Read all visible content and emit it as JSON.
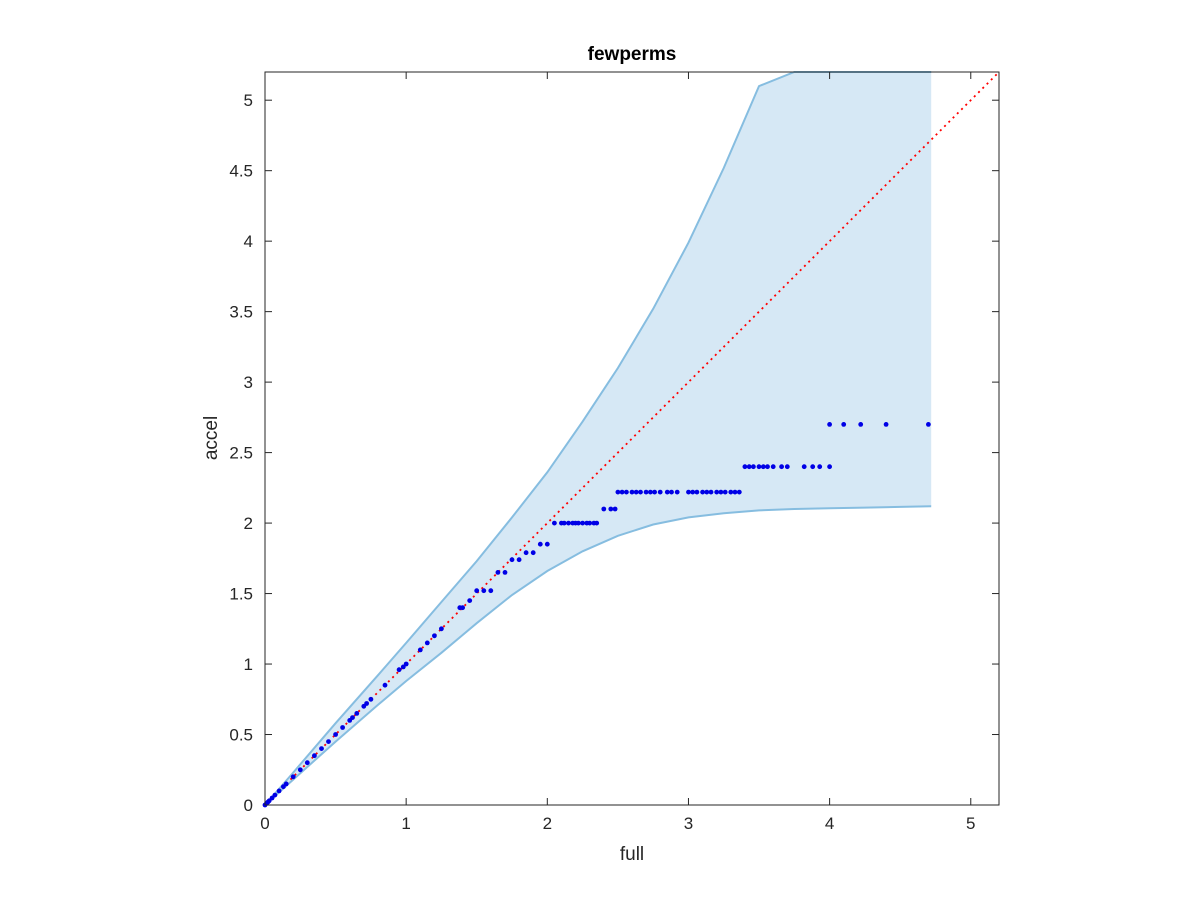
{
  "chart_data": {
    "type": "scatter",
    "title": "fewperms",
    "xlabel": "full",
    "ylabel": "accel",
    "xlim": [
      0,
      5.2
    ],
    "ylim": [
      0,
      5.2
    ],
    "xticks": [
      0,
      1,
      2,
      3,
      4,
      5
    ],
    "xtick_labels": [
      "0",
      "1",
      "2",
      "3",
      "4",
      "5"
    ],
    "yticks": [
      0,
      0.5,
      1,
      1.5,
      2,
      2.5,
      3,
      3.5,
      4,
      4.5,
      5
    ],
    "ytick_labels": [
      "0",
      "0.5",
      "1",
      "1.5",
      "2",
      "2.5",
      "3",
      "3.5",
      "4",
      "4.5",
      "5"
    ],
    "grid": false,
    "colors": {
      "points": "#0000e6",
      "band_fill": "#d6e8f5",
      "band_edge": "#86bde0",
      "reference_line": "#ff0000",
      "axes": "#262626"
    },
    "reference_line": {
      "style": "dotted",
      "x": [
        0,
        5.2
      ],
      "y": [
        0,
        5.2
      ]
    },
    "band": {
      "x": [
        0,
        0.2,
        0.5,
        0.8,
        1.0,
        1.25,
        1.5,
        1.75,
        2.0,
        2.25,
        2.5,
        2.75,
        3.0,
        3.25,
        3.5,
        3.75,
        4.0,
        4.25,
        4.5,
        4.72
      ],
      "upper": [
        0,
        0.23,
        0.58,
        0.92,
        1.15,
        1.44,
        1.73,
        2.04,
        2.36,
        2.72,
        3.1,
        3.52,
        3.99,
        4.52,
        5.1,
        5.2,
        5.2,
        5.2,
        5.2,
        5.2
      ],
      "lower": [
        0,
        0.18,
        0.45,
        0.71,
        0.88,
        1.08,
        1.29,
        1.49,
        1.66,
        1.8,
        1.91,
        1.99,
        2.04,
        2.07,
        2.09,
        2.1,
        2.105,
        2.11,
        2.115,
        2.12
      ]
    },
    "series": [
      {
        "x": [
          0.0,
          0.01,
          0.02,
          0.03,
          0.05,
          0.07,
          0.1,
          0.13,
          0.15,
          0.2,
          0.25,
          0.3,
          0.35,
          0.4,
          0.45,
          0.5,
          0.55,
          0.6,
          0.62,
          0.65,
          0.7,
          0.72,
          0.75,
          0.85,
          0.95,
          0.98,
          1.0,
          1.1,
          1.15,
          1.2,
          1.25,
          1.38,
          1.4,
          1.45,
          1.5,
          1.55,
          1.6,
          1.65,
          1.7,
          1.75,
          1.8,
          1.85,
          1.9,
          1.95,
          2.0,
          2.05,
          2.1,
          2.12,
          2.15,
          2.18,
          2.2,
          2.22,
          2.25,
          2.28,
          2.3,
          2.33,
          2.35,
          2.4,
          2.45,
          2.48,
          2.5,
          2.53,
          2.56,
          2.6,
          2.63,
          2.66,
          2.7,
          2.73,
          2.76,
          2.8,
          2.85,
          2.88,
          2.92,
          3.0,
          3.03,
          3.06,
          3.1,
          3.13,
          3.16,
          3.2,
          3.23,
          3.26,
          3.3,
          3.33,
          3.36,
          3.4,
          3.43,
          3.46,
          3.5,
          3.53,
          3.56,
          3.6,
          3.66,
          3.7,
          3.82,
          3.88,
          3.93,
          4.0,
          4.0,
          4.1,
          4.22,
          4.4,
          4.7
        ],
        "y": [
          0.0,
          0.01,
          0.02,
          0.03,
          0.05,
          0.07,
          0.1,
          0.13,
          0.15,
          0.2,
          0.25,
          0.3,
          0.35,
          0.4,
          0.45,
          0.5,
          0.55,
          0.6,
          0.62,
          0.65,
          0.7,
          0.72,
          0.75,
          0.85,
          0.96,
          0.98,
          1.0,
          1.1,
          1.15,
          1.2,
          1.25,
          1.4,
          1.4,
          1.45,
          1.52,
          1.52,
          1.52,
          1.65,
          1.65,
          1.74,
          1.74,
          1.79,
          1.79,
          1.85,
          1.85,
          2.0,
          2.0,
          2.0,
          2.0,
          2.0,
          2.0,
          2.0,
          2.0,
          2.0,
          2.0,
          2.0,
          2.0,
          2.1,
          2.1,
          2.1,
          2.22,
          2.22,
          2.22,
          2.22,
          2.22,
          2.22,
          2.22,
          2.22,
          2.22,
          2.22,
          2.22,
          2.22,
          2.22,
          2.22,
          2.22,
          2.22,
          2.22,
          2.22,
          2.22,
          2.22,
          2.22,
          2.22,
          2.22,
          2.22,
          2.22,
          2.4,
          2.4,
          2.4,
          2.4,
          2.4,
          2.4,
          2.4,
          2.4,
          2.4,
          2.4,
          2.4,
          2.4,
          2.4,
          2.7,
          2.7,
          2.7,
          2.7,
          2.7
        ]
      }
    ]
  }
}
